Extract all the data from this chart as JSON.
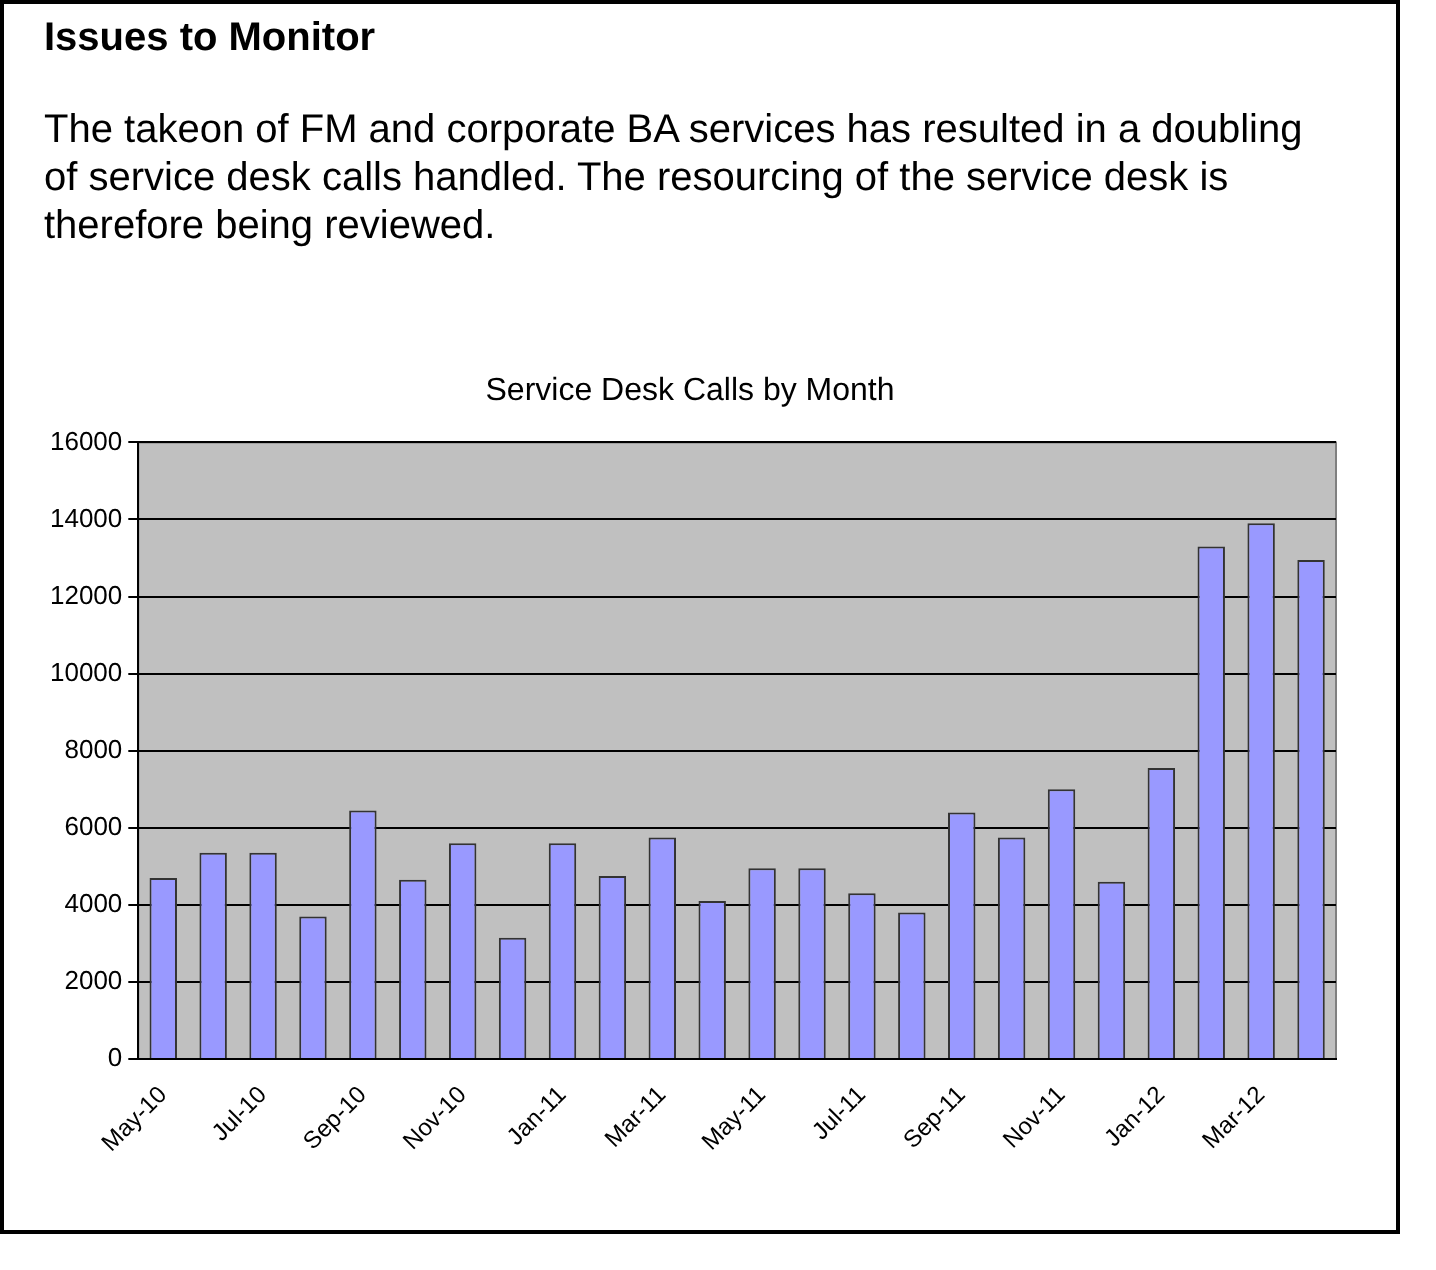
{
  "chart_data": {
    "type": "bar",
    "title": "Service Desk Calls by Month",
    "annotations": [
      "Issues to Monitor",
      "The takeon of FM and corporate BA services has resulted in a doubling of service desk calls handled. The resourcing of the service desk is therefore being reviewed."
    ],
    "categories": [
      "May-10",
      null,
      "Jul-10",
      null,
      "Sep-10",
      null,
      "Nov-10",
      null,
      "Jan-11",
      null,
      "Mar-11",
      null,
      "May-11",
      null,
      "Jul-11",
      null,
      "Sep-11",
      null,
      "Nov-11",
      null,
      "Jan-12",
      null,
      "Mar-12",
      null
    ],
    "values": [
      4700,
      5350,
      5350,
      3700,
      6450,
      4650,
      5600,
      3150,
      5600,
      4750,
      5750,
      4100,
      4950,
      4950,
      4300,
      3800,
      6400,
      5750,
      7000,
      4600,
      7550,
      13300,
      13900,
      12950
    ],
    "color": "#9999ff",
    "ylim": [
      0,
      16000
    ],
    "yticks": [
      0,
      2000,
      4000,
      6000,
      8000,
      10000,
      12000,
      14000,
      16000
    ],
    "grid": "y",
    "legend": false
  }
}
